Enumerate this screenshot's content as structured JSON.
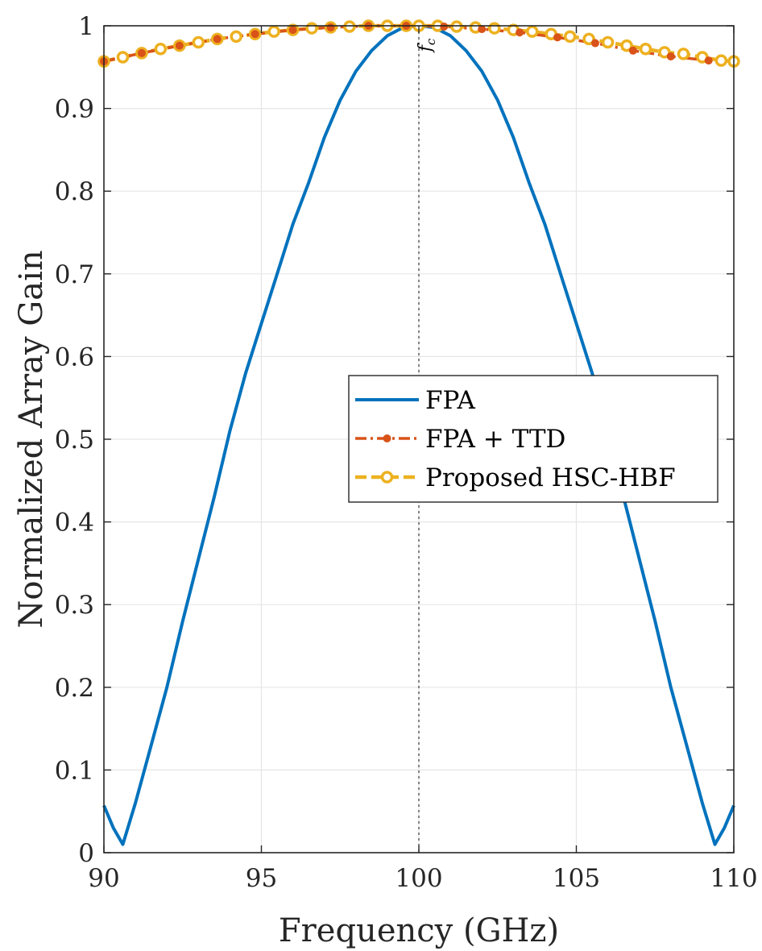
{
  "chart_data": {
    "type": "line",
    "xlabel": "Frequency (GHz)",
    "ylabel": "Normalized Array Gain",
    "xlim": [
      90,
      110
    ],
    "ylim": [
      0,
      1
    ],
    "xticks": [
      90,
      95,
      100,
      105,
      110
    ],
    "xtick_labels": [
      "90",
      "95",
      "100",
      "105",
      "110"
    ],
    "yticks": [
      0,
      0.1,
      0.2,
      0.3,
      0.4,
      0.5,
      0.6,
      0.7,
      0.8,
      0.9,
      1
    ],
    "ytick_labels": [
      "0",
      "0.1",
      "0.2",
      "0.3",
      "0.4",
      "0.5",
      "0.6",
      "0.7",
      "0.8",
      "0.9",
      "1"
    ],
    "grid": true,
    "legend_position": "center-right",
    "annotation": {
      "text": "f",
      "subscript": "c",
      "x": 100
    },
    "colors": {
      "fpa": "#0072BD",
      "ttd": "#D95319",
      "hsc": "#EDB120",
      "grid": "#e6e6e6",
      "axis": "#262626"
    },
    "series": [
      {
        "name": "FPA",
        "style": "solid",
        "x": [
          90,
          90.3,
          90.6,
          91,
          91.5,
          92,
          92.5,
          93,
          93.5,
          94,
          94.5,
          95,
          95.5,
          96,
          96.5,
          97,
          97.5,
          98,
          98.5,
          99,
          99.5,
          100,
          100.5,
          101,
          101.5,
          102,
          102.5,
          103,
          103.5,
          104,
          104.5,
          105,
          105.5,
          106,
          106.5,
          107,
          107.5,
          108,
          108.5,
          109,
          109.4,
          109.7,
          110
        ],
        "y": [
          0.057,
          0.03,
          0.01,
          0.06,
          0.13,
          0.2,
          0.28,
          0.355,
          0.43,
          0.51,
          0.58,
          0.64,
          0.7,
          0.76,
          0.81,
          0.865,
          0.91,
          0.945,
          0.97,
          0.988,
          0.998,
          1.0,
          0.998,
          0.988,
          0.97,
          0.945,
          0.91,
          0.865,
          0.81,
          0.76,
          0.7,
          0.64,
          0.58,
          0.51,
          0.43,
          0.355,
          0.28,
          0.2,
          0.13,
          0.06,
          0.01,
          0.03,
          0.057
        ]
      },
      {
        "name": "FPA + TTD",
        "style": "dashed-dot-marker",
        "x": [
          90,
          91.2,
          92.4,
          93.6,
          94.8,
          96,
          97.2,
          98.4,
          99.6,
          100.8,
          102,
          103.2,
          104.4,
          105.6,
          106.8,
          108,
          109.2
        ],
        "y": [
          0.957,
          0.967,
          0.976,
          0.984,
          0.99,
          0.995,
          0.998,
          1.0,
          1.0,
          0.999,
          0.996,
          0.992,
          0.986,
          0.979,
          0.97,
          0.963,
          0.958
        ]
      },
      {
        "name": "Proposed HSC-HBF",
        "style": "dashed-circle-marker",
        "x": [
          90,
          90.6,
          91.2,
          91.8,
          92.4,
          93,
          93.6,
          94.2,
          94.8,
          95.4,
          96,
          96.6,
          97.2,
          97.8,
          98.4,
          99,
          99.6,
          100,
          100.6,
          101.2,
          101.8,
          102.4,
          103,
          103.6,
          104.2,
          104.8,
          105.4,
          106,
          106.6,
          107.2,
          107.8,
          108.4,
          109,
          109.6,
          110
        ],
        "y": [
          0.957,
          0.962,
          0.967,
          0.972,
          0.976,
          0.98,
          0.984,
          0.987,
          0.99,
          0.993,
          0.995,
          0.997,
          0.998,
          0.999,
          1.0,
          1.0,
          1.0,
          1.0,
          1.0,
          0.999,
          0.998,
          0.997,
          0.995,
          0.993,
          0.99,
          0.987,
          0.984,
          0.98,
          0.976,
          0.972,
          0.968,
          0.966,
          0.962,
          0.958,
          0.957
        ]
      }
    ]
  }
}
